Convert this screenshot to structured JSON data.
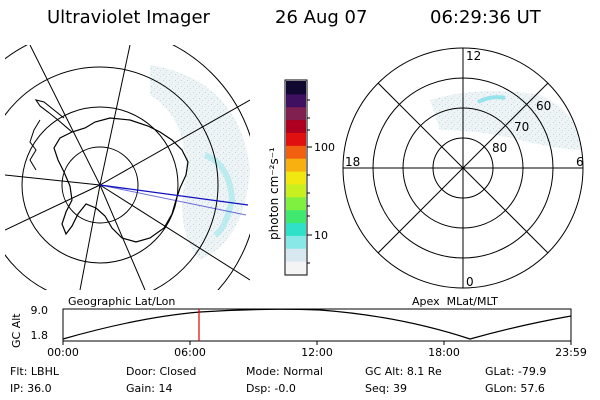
{
  "header": {
    "instrument": "Ultraviolet Imager",
    "date": "26 Aug 07",
    "time": "06:29:36 UT"
  },
  "colorbar": {
    "label": "photon cm⁻²s⁻¹",
    "ticks": [
      "100",
      "10"
    ],
    "scale": "log",
    "colors": [
      "#f4f4f4",
      "#d8e8f0",
      "#88e8e8",
      "#30e0c8",
      "#40e870",
      "#80f040",
      "#c8f020",
      "#f0e810",
      "#f8b010",
      "#f06010",
      "#e01010",
      "#b00020",
      "#802050",
      "#401060",
      "#100830"
    ]
  },
  "left_map": {
    "caption": "Geographic Lat/Lon",
    "highlight_color": "#1010c0"
  },
  "right_map": {
    "caption": "Apex  MLat/MLT",
    "mlt_labels": {
      "top": "12",
      "right": "6",
      "bottom": "0",
      "left": "18"
    },
    "lat_labels": [
      "60",
      "70",
      "80"
    ]
  },
  "altitude_plot": {
    "ylabel": "GC Alt",
    "yticks": [
      "9.0",
      "1.8"
    ],
    "xticks": [
      "00:00",
      "06:00",
      "12:00",
      "18:00",
      "23:59"
    ],
    "marker_color": "#e00000"
  },
  "status": {
    "row1": [
      {
        "key": "Flt:",
        "value": "LBHL"
      },
      {
        "key": "Door:",
        "value": "Closed"
      },
      {
        "key": "Mode:",
        "value": "Normal"
      },
      {
        "key": "GC Alt:",
        "value": "8.1 Re"
      },
      {
        "key": "GLat:",
        "value": "-79.9"
      }
    ],
    "row2": [
      {
        "key": "IP:",
        "value": "36.0"
      },
      {
        "key": "Gain:",
        "value": "14"
      },
      {
        "key": "Dsp:",
        "value": "-0.0"
      },
      {
        "key": "Seq:",
        "value": "39"
      },
      {
        "key": "GLon:",
        "value": "57.6"
      }
    ]
  }
}
